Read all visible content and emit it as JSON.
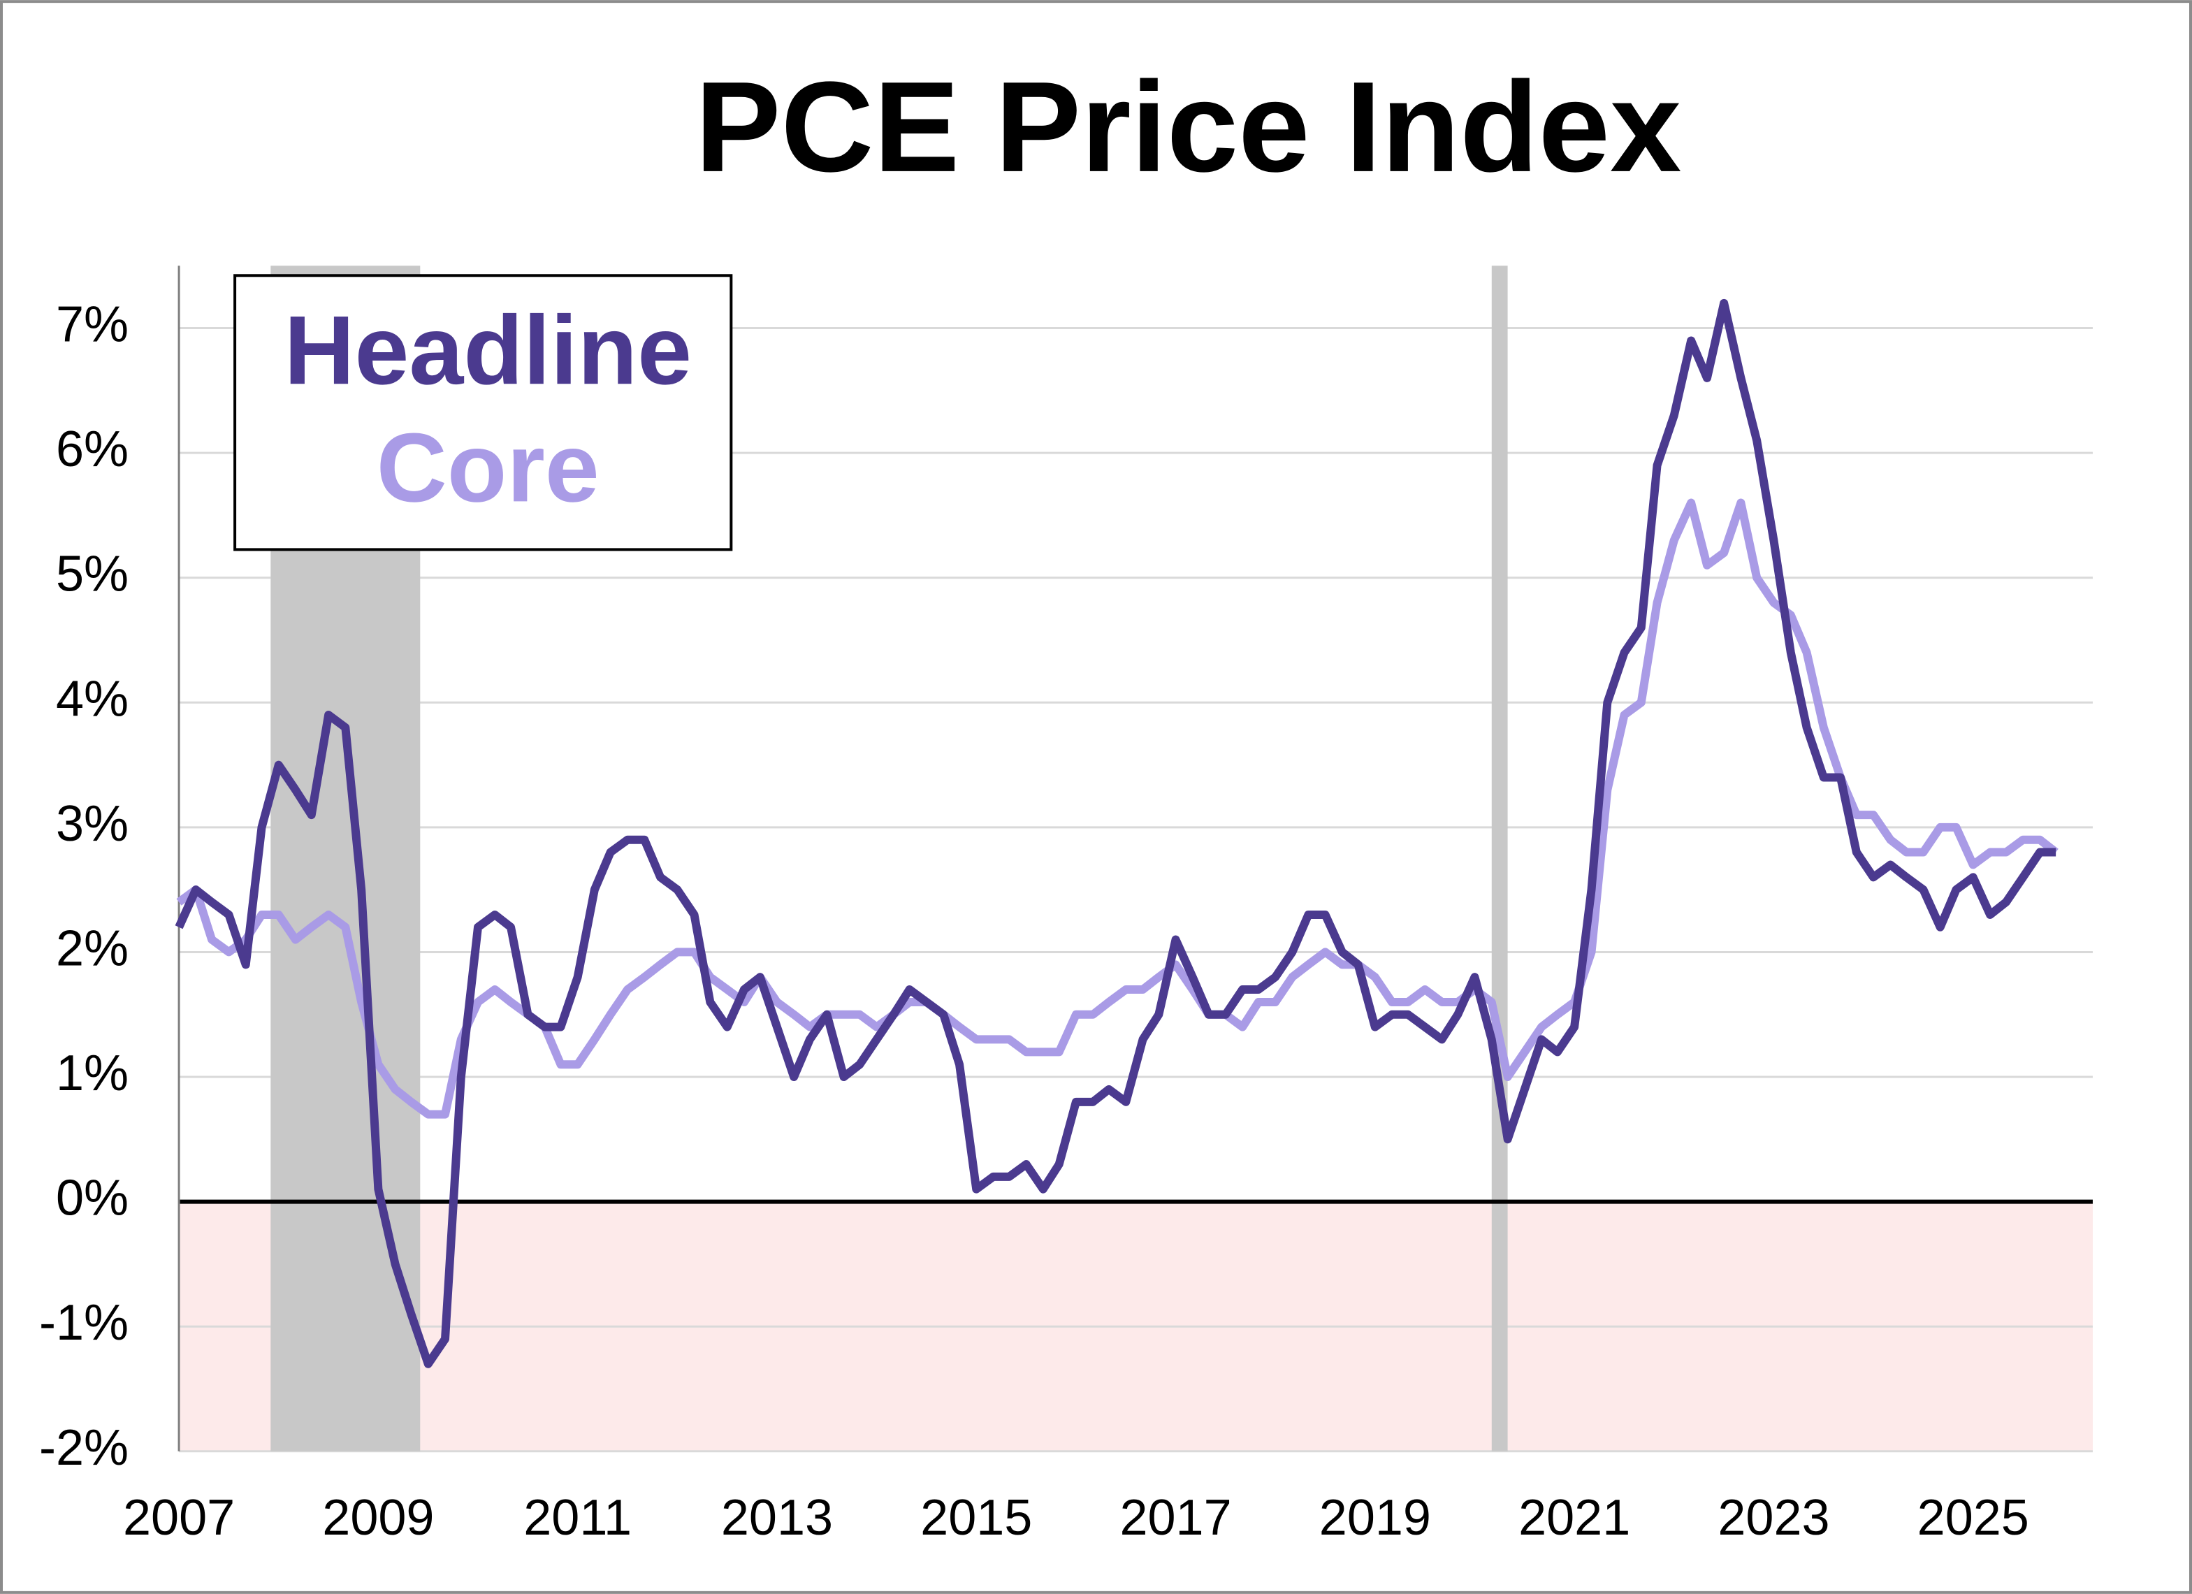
{
  "chart_data": {
    "type": "line",
    "title": "PCE Price Index",
    "x": [
      2007,
      2007.17,
      2007.33,
      2007.5,
      2007.67,
      2007.83,
      2008,
      2008.17,
      2008.33,
      2008.5,
      2008.67,
      2008.83,
      2009,
      2009.17,
      2009.33,
      2009.5,
      2009.67,
      2009.83,
      2010,
      2010.17,
      2010.33,
      2010.5,
      2010.67,
      2010.83,
      2011,
      2011.17,
      2011.33,
      2011.5,
      2011.67,
      2011.83,
      2012,
      2012.17,
      2012.33,
      2012.5,
      2012.67,
      2012.83,
      2013,
      2013.17,
      2013.33,
      2013.5,
      2013.67,
      2013.83,
      2014,
      2014.17,
      2014.33,
      2014.5,
      2014.67,
      2014.83,
      2015,
      2015.17,
      2015.33,
      2015.5,
      2015.67,
      2015.83,
      2016,
      2016.17,
      2016.33,
      2016.5,
      2016.67,
      2016.83,
      2017,
      2017.17,
      2017.33,
      2017.5,
      2017.67,
      2017.83,
      2018,
      2018.17,
      2018.33,
      2018.5,
      2018.67,
      2018.83,
      2019,
      2019.17,
      2019.33,
      2019.5,
      2019.67,
      2019.83,
      2020,
      2020.17,
      2020.33,
      2020.5,
      2020.67,
      2020.83,
      2021,
      2021.17,
      2021.33,
      2021.5,
      2021.67,
      2021.83,
      2022,
      2022.17,
      2022.33,
      2022.5,
      2022.67,
      2022.83,
      2023,
      2023.17,
      2023.33,
      2023.5,
      2023.67,
      2023.83,
      2024,
      2024.17,
      2024.33,
      2024.5,
      2024.67,
      2024.83,
      2025,
      2025.17,
      2025.33,
      2025.5,
      2025.67,
      2025.83
    ],
    "series": [
      {
        "name": "Headline",
        "color": "#4b3a8f",
        "values": [
          2.2,
          2.5,
          2.4,
          2.3,
          1.9,
          3.0,
          3.5,
          3.3,
          3.1,
          3.9,
          3.8,
          2.5,
          0.1,
          -0.5,
          -0.9,
          -1.3,
          -1.1,
          1.0,
          2.2,
          2.3,
          2.2,
          1.5,
          1.4,
          1.4,
          1.8,
          2.5,
          2.8,
          2.9,
          2.9,
          2.6,
          2.5,
          2.3,
          1.6,
          1.4,
          1.7,
          1.8,
          1.4,
          1.0,
          1.3,
          1.5,
          1.0,
          1.1,
          1.3,
          1.5,
          1.7,
          1.6,
          1.5,
          1.1,
          0.1,
          0.2,
          0.2,
          0.3,
          0.1,
          0.3,
          0.8,
          0.8,
          0.9,
          0.8,
          1.3,
          1.5,
          2.1,
          1.8,
          1.5,
          1.5,
          1.7,
          1.7,
          1.8,
          2.0,
          2.3,
          2.3,
          2.0,
          1.9,
          1.4,
          1.5,
          1.5,
          1.4,
          1.3,
          1.5,
          1.8,
          1.3,
          0.5,
          0.9,
          1.3,
          1.2,
          1.4,
          2.5,
          4.0,
          4.4,
          4.6,
          5.9,
          6.3,
          6.9,
          6.6,
          7.2,
          6.6,
          6.1,
          5.3,
          4.4,
          3.8,
          3.4,
          3.4,
          2.8,
          2.6,
          2.7,
          2.6,
          2.5,
          2.2,
          2.5,
          2.6,
          2.3,
          2.4,
          2.6,
          2.8,
          2.8
        ]
      },
      {
        "name": "Core",
        "color": "#a99be6",
        "values": [
          2.4,
          2.5,
          2.1,
          2.0,
          2.1,
          2.3,
          2.3,
          2.1,
          2.2,
          2.3,
          2.2,
          1.6,
          1.1,
          0.9,
          0.8,
          0.7,
          0.7,
          1.3,
          1.6,
          1.7,
          1.6,
          1.5,
          1.4,
          1.1,
          1.1,
          1.3,
          1.5,
          1.7,
          1.8,
          1.9,
          2.0,
          2.0,
          1.8,
          1.7,
          1.6,
          1.8,
          1.6,
          1.5,
          1.4,
          1.5,
          1.5,
          1.5,
          1.4,
          1.5,
          1.6,
          1.6,
          1.5,
          1.4,
          1.3,
          1.3,
          1.3,
          1.2,
          1.2,
          1.2,
          1.5,
          1.5,
          1.6,
          1.7,
          1.7,
          1.8,
          1.9,
          1.7,
          1.5,
          1.5,
          1.4,
          1.6,
          1.6,
          1.8,
          1.9,
          2.0,
          1.9,
          1.9,
          1.8,
          1.6,
          1.6,
          1.7,
          1.6,
          1.6,
          1.7,
          1.6,
          1.0,
          1.2,
          1.4,
          1.5,
          1.6,
          2.0,
          3.3,
          3.9,
          4.0,
          4.8,
          5.3,
          5.6,
          5.1,
          5.2,
          5.6,
          5.0,
          4.8,
          4.7,
          4.4,
          3.8,
          3.4,
          3.1,
          3.1,
          2.9,
          2.8,
          2.8,
          3.0,
          3.0,
          2.7,
          2.8,
          2.8,
          2.9,
          2.9,
          2.8
        ]
      }
    ],
    "recessions": [
      [
        2007.92,
        2009.42
      ],
      [
        2020.17,
        2020.33
      ]
    ],
    "xlim": [
      2007,
      2026.2
    ],
    "xticks": [
      2007,
      2009,
      2011,
      2013,
      2015,
      2017,
      2019,
      2021,
      2023,
      2025
    ],
    "ylim": [
      -2,
      7.5
    ],
    "yticks": [
      {
        "value": -2,
        "label": "-2%"
      },
      {
        "value": -1,
        "label": "-1%"
      },
      {
        "value": 0,
        "label": "0%"
      },
      {
        "value": 1,
        "label": "1%"
      },
      {
        "value": 2,
        "label": "2%"
      },
      {
        "value": 3,
        "label": "3%"
      },
      {
        "value": 4,
        "label": "4%"
      },
      {
        "value": 5,
        "label": "5%"
      },
      {
        "value": 6,
        "label": "6%"
      },
      {
        "value": 7,
        "label": "7%"
      }
    ],
    "grid": true,
    "legend": "upper left"
  }
}
